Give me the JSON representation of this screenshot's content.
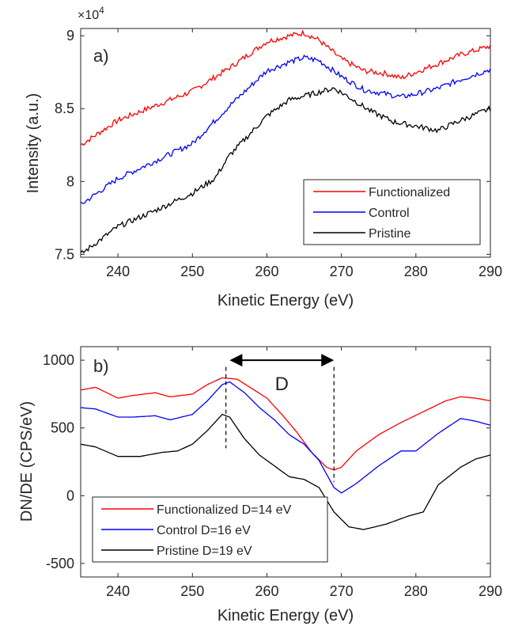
{
  "chart_data": [
    {
      "panel_label": "a)",
      "type": "line",
      "xlabel": "Kinetic Energy (eV)",
      "ylabel": "Intensity (a.u.)",
      "y_multiplier_label": "×10",
      "y_multiplier_exponent": "4",
      "xlim": [
        235,
        290
      ],
      "ylim": [
        7.48,
        9.05
      ],
      "xticks": [
        240,
        250,
        260,
        270,
        280,
        290
      ],
      "yticks": [
        7.5,
        8,
        8.5,
        9
      ],
      "ytick_labels": [
        "7.5",
        "8",
        "8.5",
        "9"
      ],
      "legend_position": "bottom-right",
      "series": [
        {
          "name": "Functionalized",
          "color": "#ff0000",
          "x": [
            235,
            240,
            245,
            250,
            255,
            260,
            263,
            265,
            267,
            270,
            273,
            276,
            278,
            280,
            283,
            286,
            290
          ],
          "y": [
            8.25,
            8.42,
            8.52,
            8.62,
            8.78,
            8.96,
            9.0,
            9.02,
            8.97,
            8.84,
            8.76,
            8.74,
            8.71,
            8.75,
            8.81,
            8.87,
            8.93
          ]
        },
        {
          "name": "Control",
          "color": "#0000ff",
          "x": [
            235,
            240,
            245,
            250,
            255,
            260,
            263,
            265,
            267,
            270,
            273,
            276,
            278,
            280,
            283,
            286,
            290
          ],
          "y": [
            7.84,
            8.02,
            8.14,
            8.26,
            8.52,
            8.76,
            8.82,
            8.85,
            8.83,
            8.72,
            8.63,
            8.6,
            8.58,
            8.6,
            8.64,
            8.7,
            8.77
          ]
        },
        {
          "name": "Pristine",
          "color": "#000000",
          "x": [
            235,
            240,
            245,
            250,
            253,
            255,
            260,
            263,
            266,
            269,
            271,
            274,
            277,
            280,
            283,
            286,
            290
          ],
          "y": [
            7.5,
            7.69,
            7.8,
            7.92,
            8.02,
            8.18,
            8.45,
            8.56,
            8.6,
            8.64,
            8.58,
            8.48,
            8.41,
            8.38,
            8.35,
            8.42,
            8.5
          ]
        }
      ]
    },
    {
      "panel_label": "b)",
      "type": "line",
      "xlabel": "Kinetic Energy (eV)",
      "ylabel": "DN/DE (CPS/eV)",
      "xlim": [
        235,
        290
      ],
      "ylim": [
        -600,
        1100
      ],
      "xticks": [
        240,
        250,
        260,
        270,
        280,
        290
      ],
      "yticks": [
        -500,
        0,
        500,
        1000
      ],
      "ytick_labels": [
        "-500",
        "0",
        "500",
        "1000"
      ],
      "legend_position": "bottom-left",
      "annotation": {
        "text": "D",
        "from_x": 255,
        "to_x": 269,
        "arrow_y": 1000,
        "label_y": 780
      },
      "vlines": [
        {
          "x": 254.5,
          "ymin": 350,
          "ymax": 950
        },
        {
          "x": 269,
          "ymin": 100,
          "ymax": 950
        }
      ],
      "series": [
        {
          "name": "Functionalized D=14 eV",
          "color": "#ff0000",
          "x": [
            235,
            237,
            240,
            242,
            245,
            247,
            250,
            252,
            254,
            256,
            258,
            260,
            262,
            264,
            266,
            268,
            269,
            270,
            272,
            275,
            278,
            281,
            284,
            286,
            288,
            290
          ],
          "y": [
            780,
            800,
            720,
            740,
            760,
            730,
            750,
            820,
            870,
            860,
            790,
            720,
            600,
            470,
            320,
            210,
            190,
            210,
            330,
            450,
            540,
            620,
            700,
            730,
            720,
            700
          ]
        },
        {
          "name": "Control D=16 eV",
          "color": "#0000ff",
          "x": [
            235,
            237,
            240,
            242,
            245,
            247,
            250,
            252,
            254,
            255,
            257,
            259,
            261,
            263,
            265,
            267,
            269,
            270,
            272,
            275,
            278,
            280,
            283,
            286,
            288,
            290
          ],
          "y": [
            650,
            640,
            580,
            580,
            590,
            560,
            600,
            700,
            820,
            840,
            760,
            650,
            560,
            450,
            380,
            260,
            60,
            20,
            90,
            220,
            330,
            330,
            460,
            570,
            550,
            520
          ]
        },
        {
          "name": "Pristine D=19 eV",
          "color": "#000000",
          "x": [
            235,
            237,
            240,
            243,
            246,
            248,
            250,
            252,
            254,
            255,
            257,
            259,
            261,
            263,
            265,
            267,
            269,
            271,
            273,
            276,
            279,
            281,
            283,
            286,
            288,
            290
          ],
          "y": [
            380,
            360,
            290,
            290,
            320,
            330,
            380,
            480,
            600,
            580,
            420,
            300,
            220,
            140,
            120,
            60,
            -120,
            -230,
            -250,
            -210,
            -150,
            -120,
            80,
            210,
            270,
            300
          ]
        }
      ]
    }
  ]
}
